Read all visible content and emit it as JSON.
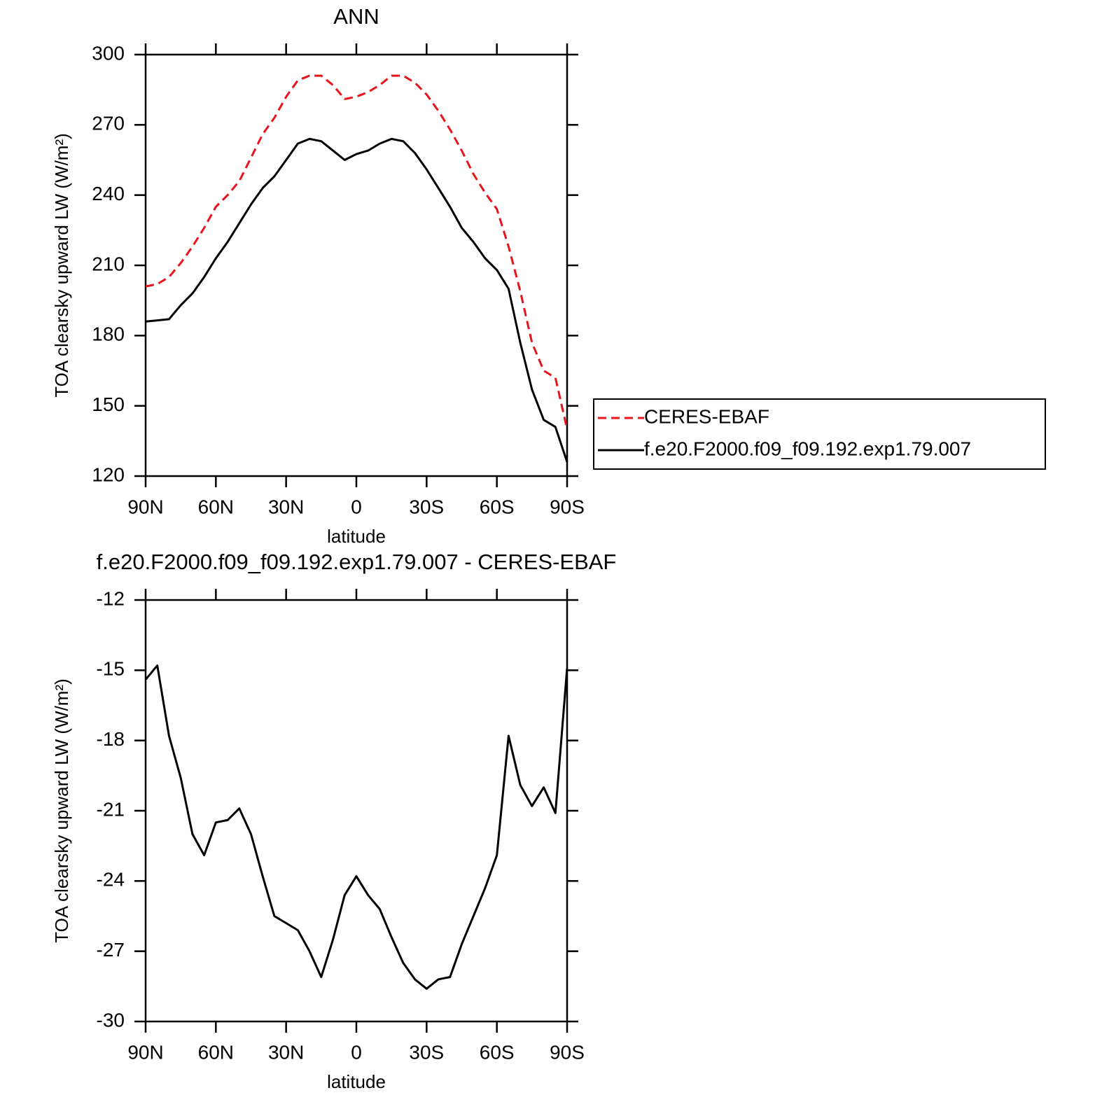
{
  "chart_data": [
    {
      "type": "line",
      "title": "ANN",
      "xlabel": "latitude",
      "ylabel": "TOA clearsky upward LW (W/m²)",
      "x": [
        90,
        85,
        80,
        75,
        70,
        65,
        60,
        55,
        50,
        45,
        40,
        35,
        30,
        25,
        20,
        15,
        10,
        5,
        0,
        -5,
        -10,
        -15,
        -20,
        -25,
        -30,
        -35,
        -40,
        -45,
        -50,
        -55,
        -60,
        -65,
        -70,
        -75,
        -80,
        -85,
        -90
      ],
      "series": [
        {
          "name": "CERES-EBAF",
          "color": "#e8141c",
          "dash": true,
          "values": [
            201,
            202,
            205,
            211,
            218,
            226,
            235,
            240,
            246,
            256,
            266,
            273,
            282,
            289,
            291,
            291,
            287,
            281,
            282,
            284,
            287,
            291,
            291,
            288,
            283,
            276,
            268,
            259,
            249,
            241,
            234,
            218,
            199,
            177,
            165,
            162,
            140
          ]
        },
        {
          "name": "f.e20.F2000.f09_f09.192.exp1.79.007",
          "color": "#000000",
          "dash": false,
          "values": [
            186,
            186.5,
            187,
            193,
            198,
            205,
            213,
            220,
            228,
            236,
            243,
            248,
            255,
            262,
            264,
            263,
            259,
            255,
            257.5,
            259,
            262,
            264,
            263,
            258,
            251,
            243,
            235,
            226,
            220,
            213,
            208,
            200,
            177,
            157,
            144,
            141,
            126
          ]
        }
      ],
      "xlim": [
        90,
        -90
      ],
      "xticks": [
        {
          "value": 90,
          "label": "90N"
        },
        {
          "value": 60,
          "label": "60N"
        },
        {
          "value": 30,
          "label": "30N"
        },
        0,
        {
          "value": -30,
          "label": "30S"
        },
        {
          "value": -60,
          "label": "60S"
        },
        {
          "value": -90,
          "label": "90S"
        }
      ],
      "ylim": [
        120,
        300
      ],
      "yticks": [
        120,
        150,
        180,
        210,
        240,
        270,
        300
      ],
      "legend": "right"
    },
    {
      "type": "line",
      "title": "f.e20.F2000.f09_f09.192.exp1.79.007 - CERES-EBAF",
      "xlabel": "latitude",
      "ylabel": "TOA clearsky upward LW (W/m²)",
      "x": [
        90,
        85,
        80,
        75,
        70,
        65,
        60,
        55,
        50,
        45,
        40,
        35,
        30,
        25,
        20,
        15,
        10,
        5,
        0,
        -5,
        -10,
        -15,
        -20,
        -25,
        -30,
        -35,
        -40,
        -45,
        -50,
        -55,
        -60,
        -65,
        -70,
        -75,
        -80,
        -85,
        -90
      ],
      "values": [
        -15.4,
        -14.8,
        -17.8,
        -19.6,
        -22.0,
        -22.9,
        -21.5,
        -21.4,
        -20.9,
        -22.0,
        -23.8,
        -25.5,
        -25.8,
        -26.1,
        -27.0,
        -28.1,
        -26.5,
        -24.6,
        -23.8,
        -24.6,
        -25.2,
        -26.4,
        -27.5,
        -28.2,
        -28.6,
        -28.2,
        -28.1,
        -26.7,
        -25.5,
        -24.3,
        -22.9,
        -17.8,
        -19.9,
        -20.8,
        -20.0,
        -21.1,
        -14.9
      ],
      "color": "#000000",
      "xlim": [
        90,
        -90
      ],
      "xticks": [
        {
          "value": 90,
          "label": "90N"
        },
        {
          "value": 60,
          "label": "60N"
        },
        {
          "value": 30,
          "label": "30N"
        },
        0,
        {
          "value": -30,
          "label": "30S"
        },
        {
          "value": -60,
          "label": "60S"
        },
        {
          "value": -90,
          "label": "90S"
        }
      ],
      "ylim": [
        -30,
        -12
      ],
      "yticks": [
        -30,
        -27,
        -24,
        -21,
        -18,
        -15,
        -12
      ]
    }
  ]
}
